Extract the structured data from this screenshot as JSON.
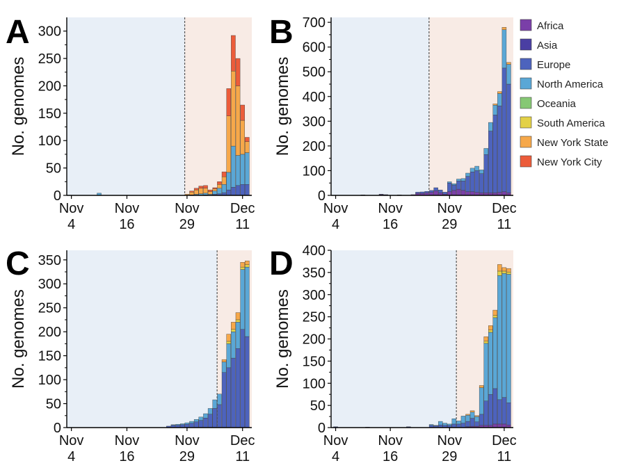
{
  "figure": {
    "legend": [
      {
        "name": "Africa",
        "color": "#7a3fa8"
      },
      {
        "name": "Asia",
        "color": "#4a3fa3"
      },
      {
        "name": "Europe",
        "color": "#4d63bd"
      },
      {
        "name": "North America",
        "color": "#5aa7d6"
      },
      {
        "name": "Oceania",
        "color": "#86c874"
      },
      {
        "name": "South America",
        "color": "#e3d147"
      },
      {
        "name": "New York State",
        "color": "#f6a84a"
      },
      {
        "name": "New York City",
        "color": "#ec5c3a"
      }
    ],
    "background_colors": {
      "before": "#e8eff7",
      "after": "#f8ebe5"
    }
  },
  "chart_data": [
    {
      "panel": "A",
      "type": "bar",
      "stacked": true,
      "ylabel": "No. genomes",
      "ylim": [
        0,
        325
      ],
      "yticks": [
        "0",
        "50",
        "100",
        "150",
        "200",
        "250",
        "300"
      ],
      "xticks": [
        {
          "top": "Nov",
          "bottom": "4",
          "day": 0
        },
        {
          "top": "Nov",
          "bottom": "16",
          "day": 12
        },
        {
          "top": "Nov",
          "bottom": "29",
          "day": 25
        },
        {
          "top": "Dec",
          "bottom": "11",
          "day": 37
        }
      ],
      "divider_day": 25,
      "series_order": [
        "Africa",
        "Asia",
        "Europe",
        "North America",
        "Oceania",
        "South America",
        "New York State",
        "New York City"
      ],
      "bars": [
        {
          "day": 6,
          "v": {
            "North America": 4
          }
        },
        {
          "day": 25,
          "v": {
            "New York State": 2
          }
        },
        {
          "day": 26,
          "v": {
            "North America": 1,
            "New York State": 5,
            "New York City": 2
          }
        },
        {
          "day": 27,
          "v": {
            "North America": 2,
            "New York State": 8,
            "New York City": 3
          }
        },
        {
          "day": 28,
          "v": {
            "North America": 3,
            "New York State": 10,
            "New York City": 4
          }
        },
        {
          "day": 29,
          "v": {
            "Europe": 1,
            "North America": 3,
            "New York State": 9,
            "New York City": 5
          }
        },
        {
          "day": 30,
          "v": {
            "North America": 2,
            "New York State": 5,
            "New York City": 3
          }
        },
        {
          "day": 31,
          "v": {
            "Europe": 2,
            "North America": 6,
            "New York State": 4,
            "New York City": 2
          }
        },
        {
          "day": 32,
          "v": {
            "Europe": 3,
            "North America": 10,
            "New York State": 7,
            "New York City": 5
          }
        },
        {
          "day": 33,
          "v": {
            "Europe": 5,
            "North America": 15,
            "New York State": 14,
            "New York City": 9
          }
        },
        {
          "day": 34,
          "v": {
            "Europe": 10,
            "North America": 32,
            "New York State": 103,
            "New York City": 50
          }
        },
        {
          "day": 35,
          "v": {
            "Europe": 15,
            "North America": 75,
            "New York State": 137,
            "New York City": 65
          }
        },
        {
          "day": 36,
          "v": {
            "Europe": 18,
            "North America": 55,
            "New York State": 127,
            "New York City": 50
          }
        },
        {
          "day": 37,
          "v": {
            "Europe": 20,
            "North America": 55,
            "New York State": 62,
            "New York City": 28
          }
        },
        {
          "day": 38,
          "v": {
            "Europe": 20,
            "North America": 58,
            "New York State": 20,
            "New York City": 8
          }
        }
      ]
    },
    {
      "panel": "B",
      "type": "bar",
      "stacked": true,
      "ylabel": "No. genomes",
      "ylim": [
        0,
        720
      ],
      "yticks": [
        "0",
        "100",
        "200",
        "300",
        "400",
        "500",
        "600",
        "700"
      ],
      "xticks": [
        {
          "top": "Nov",
          "bottom": "4",
          "day": 0
        },
        {
          "top": "Nov",
          "bottom": "16",
          "day": 12
        },
        {
          "top": "Nov",
          "bottom": "29",
          "day": 25
        },
        {
          "top": "Dec",
          "bottom": "11",
          "day": 37
        }
      ],
      "divider_day": 21,
      "series_order": [
        "Africa",
        "Asia",
        "Europe",
        "North America",
        "Oceania",
        "South America",
        "New York State",
        "New York City"
      ],
      "bars": [
        {
          "day": 6,
          "v": {
            "Africa": 2
          }
        },
        {
          "day": 10,
          "v": {
            "Africa": 3,
            "Asia": 2
          }
        },
        {
          "day": 11,
          "v": {
            "Africa": 2,
            "Asia": 1
          }
        },
        {
          "day": 14,
          "v": {
            "Africa": 2
          }
        },
        {
          "day": 17,
          "v": {
            "Africa": 3
          }
        },
        {
          "day": 18,
          "v": {
            "Africa": 8,
            "Europe": 5
          }
        },
        {
          "day": 19,
          "v": {
            "Africa": 8,
            "Europe": 6
          }
        },
        {
          "day": 20,
          "v": {
            "Africa": 10,
            "Europe": 6
          }
        },
        {
          "day": 21,
          "v": {
            "Africa": 12,
            "Europe": 8
          }
        },
        {
          "day": 22,
          "v": {
            "Africa": 18,
            "Europe": 13
          }
        },
        {
          "day": 23,
          "v": {
            "Africa": 10,
            "Europe": 12
          }
        },
        {
          "day": 24,
          "v": {
            "Africa": 5,
            "Europe": 8
          }
        },
        {
          "day": 25,
          "v": {
            "Africa": 15,
            "Europe": 35,
            "North America": 5
          }
        },
        {
          "day": 26,
          "v": {
            "Africa": 20,
            "Europe": 22,
            "North America": 5
          }
        },
        {
          "day": 27,
          "v": {
            "Africa": 25,
            "Europe": 33,
            "North America": 8
          }
        },
        {
          "day": 28,
          "v": {
            "Africa": 20,
            "Europe": 38,
            "North America": 10
          }
        },
        {
          "day": 29,
          "v": {
            "Africa": 15,
            "Europe": 62,
            "North America": 13
          }
        },
        {
          "day": 30,
          "v": {
            "Africa": 15,
            "Europe": 80,
            "North America": 15
          }
        },
        {
          "day": 31,
          "v": {
            "Africa": 12,
            "Europe": 88,
            "North America": 18
          }
        },
        {
          "day": 32,
          "v": {
            "Africa": 10,
            "Europe": 78,
            "North America": 15
          }
        },
        {
          "day": 33,
          "v": {
            "Africa": 10,
            "Europe": 155,
            "North America": 25
          }
        },
        {
          "day": 34,
          "v": {
            "Africa": 10,
            "Europe": 250,
            "North America": 35
          }
        },
        {
          "day": 35,
          "v": {
            "Africa": 10,
            "Europe": 315,
            "North America": 40,
            "New York State": 5
          }
        },
        {
          "day": 36,
          "v": {
            "Africa": 12,
            "Europe": 350,
            "North America": 50,
            "New York State": 8
          }
        },
        {
          "day": 37,
          "v": {
            "Africa": 15,
            "Europe": 500,
            "North America": 155,
            "New York State": 10
          }
        },
        {
          "day": 38,
          "v": {
            "Africa": 10,
            "Europe": 440,
            "North America": 80,
            "New York State": 8
          }
        }
      ]
    },
    {
      "panel": "C",
      "type": "bar",
      "stacked": true,
      "ylabel": "No. genomes",
      "ylim": [
        0,
        370
      ],
      "yticks": [
        "0",
        "50",
        "100",
        "150",
        "200",
        "250",
        "300",
        "350"
      ],
      "xticks": [
        {
          "top": "Nov",
          "bottom": "4",
          "day": 0
        },
        {
          "top": "Nov",
          "bottom": "16",
          "day": 12
        },
        {
          "top": "Nov",
          "bottom": "29",
          "day": 25
        },
        {
          "top": "Dec",
          "bottom": "11",
          "day": 37
        }
      ],
      "divider_day": 32,
      "series_order": [
        "Africa",
        "Asia",
        "Europe",
        "North America",
        "Oceania",
        "South America",
        "New York State",
        "New York City"
      ],
      "bars": [
        {
          "day": 21,
          "v": {
            "Europe": 3
          }
        },
        {
          "day": 22,
          "v": {
            "Europe": 5,
            "North America": 1
          }
        },
        {
          "day": 23,
          "v": {
            "Europe": 5,
            "North America": 2
          }
        },
        {
          "day": 24,
          "v": {
            "Europe": 6,
            "North America": 2
          }
        },
        {
          "day": 25,
          "v": {
            "Europe": 7,
            "North America": 3
          }
        },
        {
          "day": 26,
          "v": {
            "Europe": 9,
            "North America": 4
          }
        },
        {
          "day": 27,
          "v": {
            "Europe": 12,
            "North America": 5
          }
        },
        {
          "day": 28,
          "v": {
            "Europe": 15,
            "North America": 7
          }
        },
        {
          "day": 29,
          "v": {
            "Europe": 20,
            "North America": 9
          }
        },
        {
          "day": 30,
          "v": {
            "Europe": 28,
            "North America": 12
          }
        },
        {
          "day": 31,
          "v": {
            "Europe": 40,
            "North America": 18
          }
        },
        {
          "day": 32,
          "v": {
            "Europe": 48,
            "North America": 22
          }
        },
        {
          "day": 33,
          "v": {
            "Europe": 115,
            "North America": 22,
            "New York State": 5
          }
        },
        {
          "day": 34,
          "v": {
            "Europe": 125,
            "North America": 50,
            "South America": 5,
            "New York State": 15
          }
        },
        {
          "day": 35,
          "v": {
            "Europe": 145,
            "North America": 55,
            "South America": 5,
            "New York State": 15
          }
        },
        {
          "day": 36,
          "v": {
            "Europe": 165,
            "North America": 55,
            "South America": 5,
            "New York State": 15
          }
        },
        {
          "day": 37,
          "v": {
            "Europe": 205,
            "North America": 125,
            "South America": 5,
            "New York State": 10
          }
        },
        {
          "day": 38,
          "v": {
            "Europe": 190,
            "North America": 145,
            "South America": 5,
            "New York State": 8
          }
        }
      ]
    },
    {
      "panel": "D",
      "type": "bar",
      "stacked": true,
      "ylabel": "No. genomes",
      "ylim": [
        0,
        400
      ],
      "yticks": [
        "0",
        "50",
        "100",
        "150",
        "200",
        "250",
        "300",
        "350",
        "400"
      ],
      "xticks": [
        {
          "top": "Nov",
          "bottom": "4",
          "day": 0
        },
        {
          "top": "Nov",
          "bottom": "16",
          "day": 12
        },
        {
          "top": "Nov",
          "bottom": "29",
          "day": 25
        },
        {
          "top": "Dec",
          "bottom": "11",
          "day": 37
        }
      ],
      "divider_day": 27,
      "series_order": [
        "Africa",
        "Asia",
        "Europe",
        "North America",
        "Oceania",
        "South America",
        "New York State",
        "New York City"
      ],
      "bars": [
        {
          "day": 0,
          "v": {
            "Europe": 2
          }
        },
        {
          "day": 7,
          "v": {
            "Europe": 1
          }
        },
        {
          "day": 16,
          "v": {
            "Europe": 2
          }
        },
        {
          "day": 21,
          "v": {
            "Europe": 5,
            "North America": 2
          }
        },
        {
          "day": 22,
          "v": {
            "Europe": 4,
            "North America": 1
          }
        },
        {
          "day": 23,
          "v": {
            "Europe": 6,
            "North America": 8
          }
        },
        {
          "day": 24,
          "v": {
            "Europe": 5,
            "North America": 5
          }
        },
        {
          "day": 25,
          "v": {
            "Europe": 5,
            "North America": 3
          }
        },
        {
          "day": 26,
          "v": {
            "Europe": 8,
            "North America": 12
          }
        },
        {
          "day": 27,
          "v": {
            "Europe": 8,
            "North America": 7
          }
        },
        {
          "day": 28,
          "v": {
            "Europe": 10,
            "North America": 16
          }
        },
        {
          "day": 29,
          "v": {
            "Africa": 2,
            "Europe": 12,
            "North America": 14,
            "New York State": 2
          }
        },
        {
          "day": 30,
          "v": {
            "Africa": 3,
            "Europe": 18,
            "North America": 14,
            "New York State": 3
          }
        },
        {
          "day": 31,
          "v": {
            "Africa": 3,
            "Europe": 10,
            "North America": 12,
            "New York State": 2
          }
        },
        {
          "day": 32,
          "v": {
            "Africa": 5,
            "Europe": 25,
            "North America": 60,
            "New York State": 5
          }
        },
        {
          "day": 33,
          "v": {
            "Africa": 5,
            "Europe": 55,
            "North America": 130,
            "South America": 5,
            "New York State": 10
          }
        },
        {
          "day": 34,
          "v": {
            "Africa": 5,
            "Europe": 70,
            "North America": 140,
            "South America": 5,
            "New York State": 10
          }
        },
        {
          "day": 35,
          "v": {
            "Africa": 8,
            "Europe": 80,
            "North America": 160,
            "South America": 5,
            "New York State": 12
          }
        },
        {
          "day": 36,
          "v": {
            "Africa": 8,
            "Europe": 55,
            "North America": 280,
            "South America": 10,
            "New York State": 15
          }
        },
        {
          "day": 37,
          "v": {
            "Africa": 8,
            "Europe": 60,
            "North America": 280,
            "South America": 5,
            "New York State": 8
          }
        },
        {
          "day": 38,
          "v": {
            "Africa": 6,
            "Europe": 50,
            "North America": 290,
            "South America": 5,
            "New York State": 8
          }
        }
      ]
    }
  ]
}
